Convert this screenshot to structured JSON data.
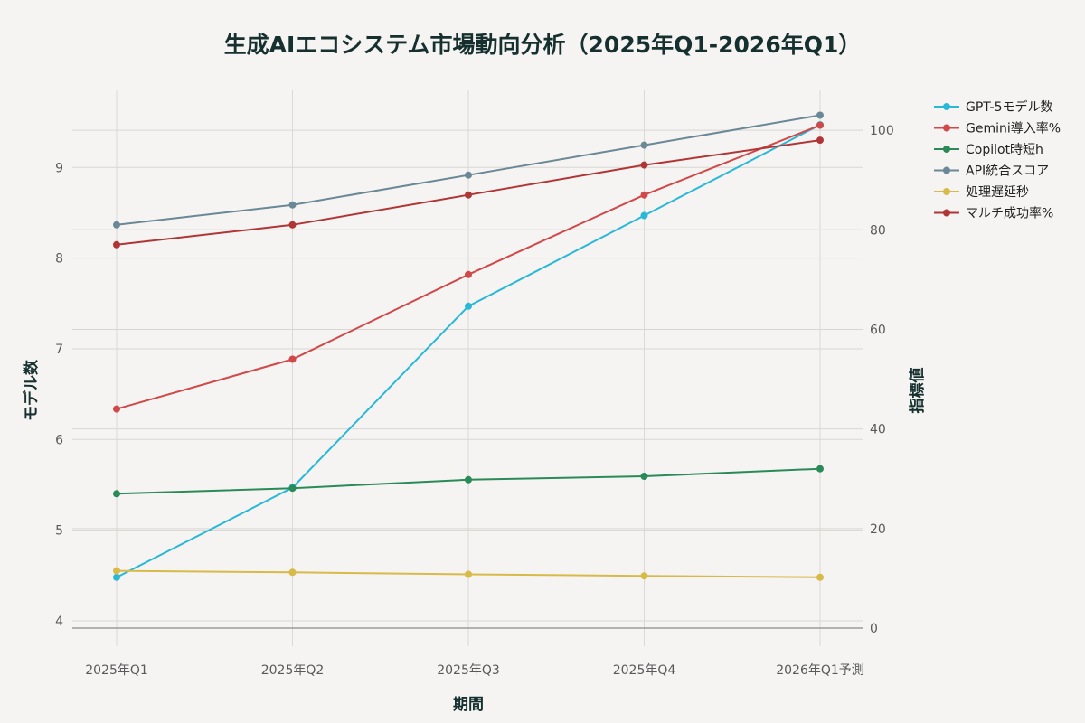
{
  "chart_data": {
    "type": "line",
    "title": "生成AIエコシステム市場動向分析（2025年Q1-2026年Q1）",
    "xlabel": "期間",
    "ylabel_left": "モデル数",
    "ylabel_right": "指標値",
    "categories": [
      "2025年Q1",
      "2025年Q2",
      "2025年Q3",
      "2025年Q4",
      "2026年Q1予測"
    ],
    "ylim_left": [
      3.92,
      9.85
    ],
    "ylim_right": [
      0,
      108
    ],
    "yticks_left": [
      "4",
      "5",
      "6",
      "7",
      "8",
      "9"
    ],
    "yticks_right": [
      "0",
      "20",
      "40",
      "60",
      "80",
      "100"
    ],
    "grid": true,
    "legend_position": "top-right",
    "series": [
      {
        "name": "GPT-5モデル数",
        "axis": "left",
        "color": "#29b8d8",
        "values": [
          4.48,
          5.47,
          7.47,
          8.47,
          9.47
        ]
      },
      {
        "name": "Gemini導入率%",
        "axis": "right",
        "color": "#d04848",
        "values": [
          44,
          54,
          71,
          87,
          101
        ]
      },
      {
        "name": "Copilot時短h",
        "axis": "right",
        "color": "#2a8a58",
        "values": [
          27,
          28.1,
          29.8,
          30.5,
          32
        ]
      },
      {
        "name": "API統合スコア",
        "axis": "right",
        "color": "#6a8896",
        "values": [
          81,
          85,
          91,
          97,
          103
        ]
      },
      {
        "name": "処理遅延秒",
        "axis": "right",
        "color": "#d8ba48",
        "values": [
          11.5,
          11.2,
          10.8,
          10.5,
          10.2
        ]
      },
      {
        "name": "マルチ成功率%",
        "axis": "right",
        "color": "#b03636",
        "values": [
          77,
          81,
          87,
          93,
          98
        ]
      }
    ]
  }
}
